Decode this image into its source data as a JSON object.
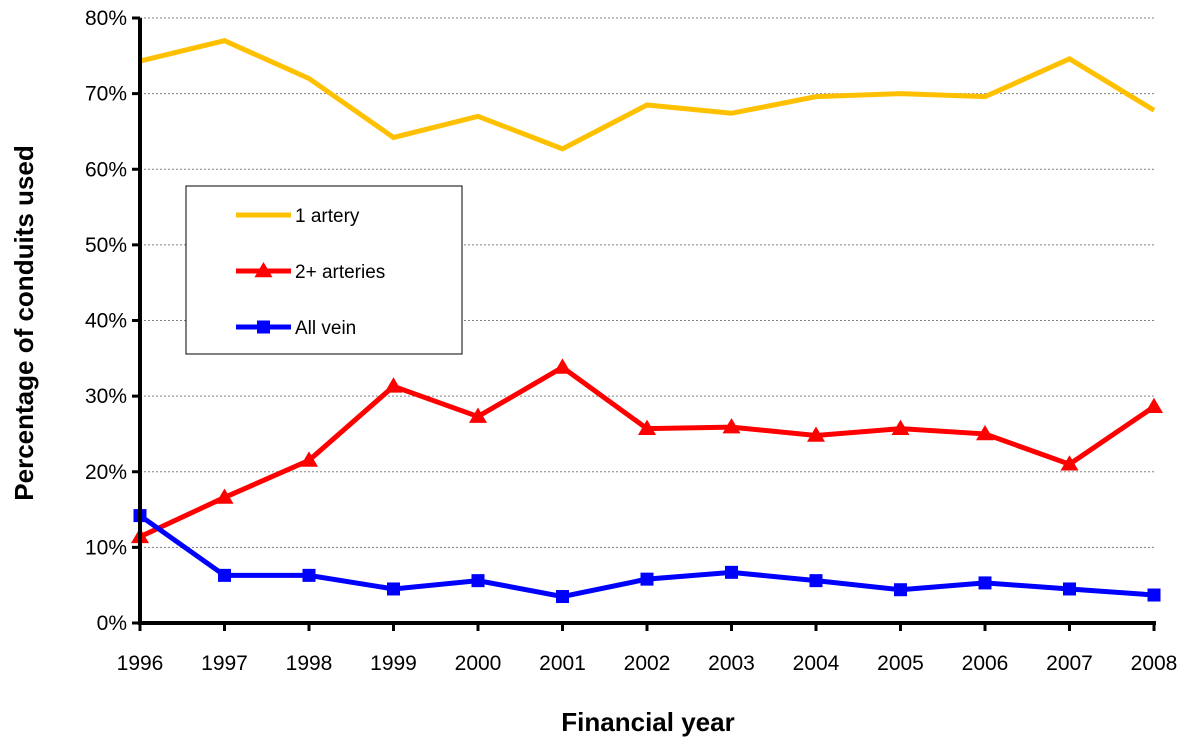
{
  "chart_data": {
    "type": "line",
    "xlabel": "Financial year",
    "ylabel": "Percentage of conduits used",
    "x": [
      "1996",
      "1997",
      "1998",
      "1999",
      "2000",
      "2001",
      "2002",
      "2003",
      "2004",
      "2005",
      "2006",
      "2007",
      "2008"
    ],
    "ylim": [
      0,
      80
    ],
    "yticks": [
      "0%",
      "10%",
      "20%",
      "30%",
      "40%",
      "50%",
      "60%",
      "70%",
      "80%"
    ],
    "grid": "horizontal-dashed",
    "legend_position": "left-center",
    "series": [
      {
        "name": "1 artery",
        "color": "#FFC000",
        "marker": "none",
        "values": [
          74.3,
          77.0,
          72.0,
          64.2,
          67.0,
          62.7,
          68.5,
          67.4,
          69.6,
          70.0,
          69.6,
          74.6,
          67.8
        ]
      },
      {
        "name": "2+ arteries",
        "color": "#FF0000",
        "marker": "triangle",
        "values": [
          11.4,
          16.6,
          21.5,
          31.3,
          27.3,
          33.8,
          25.7,
          25.9,
          24.8,
          25.7,
          25.0,
          21.0,
          28.6
        ]
      },
      {
        "name": "All vein",
        "color": "#0000FF",
        "marker": "square",
        "values": [
          14.2,
          6.3,
          6.3,
          4.5,
          5.6,
          3.5,
          5.8,
          6.7,
          5.6,
          4.4,
          5.3,
          4.5,
          3.7
        ]
      }
    ]
  }
}
